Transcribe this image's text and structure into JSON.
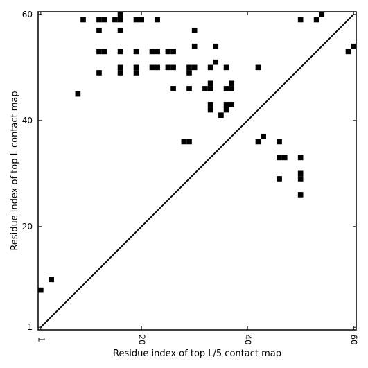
{
  "chart_data": {
    "type": "heatmap",
    "xlabel": "Residue index of top L/5 contact map",
    "ylabel": "Residue index of top L contact map",
    "xlim": [
      0.5,
      60.5
    ],
    "ylim": [
      0.5,
      60.5
    ],
    "x_ticks": [
      "1",
      "20",
      "40",
      "60"
    ],
    "y_ticks": [
      "1",
      "20",
      "40",
      "60"
    ],
    "x_tick_values": [
      1,
      20,
      40,
      60
    ],
    "y_tick_values": [
      1,
      20,
      40,
      60
    ],
    "diagonal": true,
    "cell_color": "#000000",
    "upper_triangle_cells": [
      [
        9,
        59
      ],
      [
        12,
        59
      ],
      [
        13,
        59
      ],
      [
        15,
        59
      ],
      [
        16,
        59
      ],
      [
        16,
        60
      ],
      [
        19,
        59
      ],
      [
        20,
        59
      ],
      [
        23,
        59
      ],
      [
        50,
        59
      ],
      [
        53,
        59
      ],
      [
        54,
        60
      ],
      [
        12,
        57
      ],
      [
        16,
        57
      ],
      [
        30,
        57
      ],
      [
        30,
        54
      ],
      [
        34,
        54
      ],
      [
        12,
        53
      ],
      [
        13,
        53
      ],
      [
        16,
        53
      ],
      [
        19,
        53
      ],
      [
        22,
        53
      ],
      [
        23,
        53
      ],
      [
        25,
        53
      ],
      [
        26,
        53
      ],
      [
        34,
        51
      ],
      [
        16,
        50
      ],
      [
        19,
        50
      ],
      [
        22,
        50
      ],
      [
        23,
        50
      ],
      [
        25,
        50
      ],
      [
        26,
        50
      ],
      [
        29,
        50
      ],
      [
        30,
        50
      ],
      [
        33,
        50
      ],
      [
        36,
        50
      ],
      [
        42,
        50
      ],
      [
        12,
        49
      ],
      [
        16,
        49
      ],
      [
        19,
        49
      ],
      [
        29,
        49
      ],
      [
        8,
        45
      ],
      [
        37,
        47
      ],
      [
        33,
        47
      ],
      [
        26,
        46
      ],
      [
        29,
        46
      ],
      [
        32,
        46
      ],
      [
        33,
        46
      ],
      [
        36,
        46
      ],
      [
        37,
        46
      ],
      [
        33,
        43
      ],
      [
        36,
        43
      ],
      [
        37,
        43
      ],
      [
        33,
        42
      ],
      [
        36,
        42
      ],
      [
        35,
        41
      ],
      [
        59,
        53
      ],
      [
        60,
        54
      ]
    ],
    "lower_triangle_cells": [
      [
        1,
        8
      ],
      [
        3,
        10
      ],
      [
        28,
        36
      ],
      [
        29,
        36
      ],
      [
        43,
        37
      ],
      [
        42,
        36
      ],
      [
        46,
        36
      ],
      [
        46,
        33
      ],
      [
        47,
        33
      ],
      [
        50,
        33
      ],
      [
        50,
        30
      ],
      [
        50,
        29
      ],
      [
        46,
        29
      ],
      [
        50,
        26
      ]
    ]
  }
}
